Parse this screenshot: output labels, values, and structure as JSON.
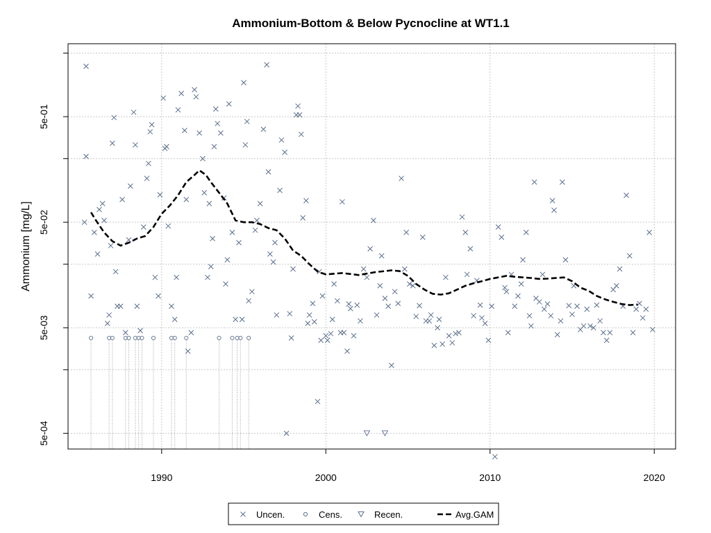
{
  "chart_data": {
    "type": "scatter",
    "title": "Ammonium-Bottom & Below Pycnocline at WT1.1",
    "xlabel": "",
    "ylabel": "Ammonium [mg/L]",
    "xlim": [
      1984.3,
      2021.3
    ],
    "ylim_log10": [
      -3.45,
      0.39
    ],
    "y_scale": "log",
    "grid": true,
    "x_ticks": [
      1990,
      2000,
      2010,
      2020
    ],
    "y_ticks": [
      {
        "value": 0.0005,
        "label": "5e-04"
      },
      {
        "value": 0.005,
        "label": "5e-03"
      },
      {
        "value": 0.05,
        "label": "5e-02"
      },
      {
        "value": 0.5,
        "label": "5e-01"
      }
    ],
    "y_grid": [
      0.0002,
      0.0005,
      0.002,
      0.005,
      0.02,
      0.05,
      0.2,
      0.5,
      2
    ],
    "legend": {
      "position": "bottom",
      "entries": [
        {
          "label": "Uncen.",
          "symbol": "x"
        },
        {
          "label": "Cens.",
          "symbol": "circle"
        },
        {
          "label": "Recen.",
          "symbol": "triangle-down"
        },
        {
          "label": "Avg.GAM",
          "symbol": "dashed-line"
        }
      ]
    },
    "colors": {
      "points": "#5a6e8c",
      "gam": "#000000",
      "grid": "#c8c8c8",
      "censored_line": "#a8a8a8"
    },
    "series": [
      {
        "name": "Uncen.",
        "points": [
          [
            1985.4,
            1.5
          ],
          [
            1985.4,
            0.21
          ],
          [
            1985.3,
            0.05
          ],
          [
            1985.7,
            0.01
          ],
          [
            1985.9,
            0.04
          ],
          [
            1986.1,
            0.025
          ],
          [
            1986.2,
            0.066
          ],
          [
            1986.4,
            0.075
          ],
          [
            1986.5,
            0.052
          ],
          [
            1986.7,
            0.0055
          ],
          [
            1986.8,
            0.0066
          ],
          [
            1986.9,
            0.03
          ],
          [
            1987.0,
            0.28
          ],
          [
            1987.1,
            0.49
          ],
          [
            1987.2,
            0.017
          ],
          [
            1987.3,
            0.008
          ],
          [
            1987.5,
            0.008
          ],
          [
            1987.6,
            0.082
          ],
          [
            1987.8,
            0.0045
          ],
          [
            1988.0,
            0.034
          ],
          [
            1988.1,
            0.11
          ],
          [
            1988.3,
            0.55
          ],
          [
            1988.4,
            0.27
          ],
          [
            1988.5,
            0.008
          ],
          [
            1988.7,
            0.0047
          ],
          [
            1988.9,
            0.045
          ],
          [
            1989.1,
            0.13
          ],
          [
            1989.2,
            0.18
          ],
          [
            1989.3,
            0.36
          ],
          [
            1989.4,
            0.42
          ],
          [
            1989.6,
            0.015
          ],
          [
            1989.8,
            0.01
          ],
          [
            1989.9,
            0.091
          ],
          [
            1990.1,
            0.75
          ],
          [
            1990.2,
            0.25
          ],
          [
            1990.3,
            0.26
          ],
          [
            1990.4,
            0.046
          ],
          [
            1990.6,
            0.008
          ],
          [
            1990.8,
            0.006
          ],
          [
            1990.9,
            0.015
          ],
          [
            1991.0,
            0.58
          ],
          [
            1991.2,
            0.83
          ],
          [
            1991.4,
            0.37
          ],
          [
            1991.5,
            0.082
          ],
          [
            1991.6,
            0.003
          ],
          [
            1991.8,
            0.0045
          ],
          [
            1992.0,
            0.9
          ],
          [
            1992.1,
            0.77
          ],
          [
            1992.3,
            0.35
          ],
          [
            1992.5,
            0.2
          ],
          [
            1992.6,
            0.095
          ],
          [
            1992.8,
            0.015
          ],
          [
            1992.9,
            0.075
          ],
          [
            1993.0,
            0.019
          ],
          [
            1993.1,
            0.035
          ],
          [
            1993.2,
            0.26
          ],
          [
            1993.3,
            0.59
          ],
          [
            1993.4,
            0.43
          ],
          [
            1993.6,
            0.35
          ],
          [
            1993.8,
            0.085
          ],
          [
            1993.9,
            0.013
          ],
          [
            1994.0,
            0.022
          ],
          [
            1994.1,
            0.66
          ],
          [
            1994.3,
            0.04
          ],
          [
            1994.5,
            0.006
          ],
          [
            1994.7,
            0.032
          ],
          [
            1994.9,
            0.006
          ],
          [
            1995.0,
            1.05
          ],
          [
            1995.1,
            0.27
          ],
          [
            1995.2,
            0.45
          ],
          [
            1995.3,
            0.009
          ],
          [
            1995.5,
            0.011
          ],
          [
            1995.7,
            0.042
          ],
          [
            1995.8,
            0.052
          ],
          [
            1996.0,
            0.075
          ],
          [
            1996.2,
            0.38
          ],
          [
            1996.4,
            1.55
          ],
          [
            1996.5,
            0.15
          ],
          [
            1996.6,
            0.025
          ],
          [
            1996.8,
            0.021
          ],
          [
            1996.9,
            0.032
          ],
          [
            1997.0,
            0.0066
          ],
          [
            1997.2,
            0.1
          ],
          [
            1997.3,
            0.3
          ],
          [
            1997.5,
            0.23
          ],
          [
            1997.6,
            0.0005
          ],
          [
            1997.8,
            0.0068
          ],
          [
            1997.9,
            0.004
          ],
          [
            1998.0,
            0.018
          ],
          [
            1998.2,
            0.52
          ],
          [
            1998.3,
            0.63
          ],
          [
            1998.4,
            0.52
          ],
          [
            1998.5,
            0.34
          ],
          [
            1998.6,
            0.055
          ],
          [
            1998.8,
            0.08
          ],
          [
            1998.9,
            0.0055
          ],
          [
            1999.0,
            0.0066
          ],
          [
            1999.2,
            0.0085
          ],
          [
            1999.3,
            0.0057
          ],
          [
            1999.5,
            0.001
          ],
          [
            1999.6,
            0.017
          ],
          [
            1999.7,
            0.0038
          ],
          [
            1999.8,
            0.01
          ],
          [
            2000.0,
            0.0042
          ],
          [
            2000.1,
            0.0038
          ],
          [
            2000.3,
            0.0044
          ],
          [
            2000.4,
            0.006
          ],
          [
            2000.5,
            0.013
          ],
          [
            2000.7,
            0.009
          ],
          [
            2000.9,
            0.0045
          ],
          [
            2001.0,
            0.078
          ],
          [
            2001.1,
            0.0045
          ],
          [
            2001.3,
            0.003
          ],
          [
            2001.4,
            0.0084
          ],
          [
            2001.5,
            0.0076
          ],
          [
            2001.7,
            0.0042
          ],
          [
            2001.9,
            0.0082
          ],
          [
            2002.1,
            0.0058
          ],
          [
            2002.3,
            0.018
          ],
          [
            2002.5,
            0.015
          ],
          [
            2002.7,
            0.028
          ],
          [
            2002.9,
            0.052
          ],
          [
            2003.1,
            0.0066
          ],
          [
            2003.3,
            0.0125
          ],
          [
            2003.4,
            0.024
          ],
          [
            2003.6,
            0.0095
          ],
          [
            2003.8,
            0.008
          ],
          [
            2004.0,
            0.0022
          ],
          [
            2004.2,
            0.011
          ],
          [
            2004.4,
            0.0085
          ],
          [
            2004.6,
            0.13
          ],
          [
            2004.8,
            0.018
          ],
          [
            2004.9,
            0.04
          ],
          [
            2005.1,
            0.013
          ],
          [
            2005.3,
            0.0125
          ],
          [
            2005.5,
            0.0064
          ],
          [
            2005.7,
            0.0081
          ],
          [
            2005.9,
            0.036
          ],
          [
            2006.1,
            0.0058
          ],
          [
            2006.3,
            0.0058
          ],
          [
            2006.4,
            0.0066
          ],
          [
            2006.6,
            0.0034
          ],
          [
            2006.8,
            0.005
          ],
          [
            2006.9,
            0.006
          ],
          [
            2007.1,
            0.0035
          ],
          [
            2007.3,
            0.015
          ],
          [
            2007.5,
            0.0042
          ],
          [
            2007.7,
            0.0036
          ],
          [
            2007.9,
            0.0044
          ],
          [
            2008.1,
            0.0045
          ],
          [
            2008.3,
            0.056
          ],
          [
            2008.5,
            0.04
          ],
          [
            2008.6,
            0.016
          ],
          [
            2008.8,
            0.028
          ],
          [
            2009.0,
            0.0065
          ],
          [
            2009.2,
            0.014
          ],
          [
            2009.4,
            0.0082
          ],
          [
            2009.5,
            0.0062
          ],
          [
            2009.7,
            0.0055
          ],
          [
            2009.9,
            0.0038
          ],
          [
            2010.1,
            0.008
          ],
          [
            2010.3,
            0.0003
          ],
          [
            2010.5,
            0.045
          ],
          [
            2010.7,
            0.036
          ],
          [
            2010.9,
            0.012
          ],
          [
            2011.0,
            0.011
          ],
          [
            2011.1,
            0.0045
          ],
          [
            2011.3,
            0.016
          ],
          [
            2011.5,
            0.008
          ],
          [
            2011.7,
            0.01
          ],
          [
            2011.9,
            0.013
          ],
          [
            2012.0,
            0.022
          ],
          [
            2012.2,
            0.04
          ],
          [
            2012.4,
            0.0065
          ],
          [
            2012.5,
            0.0052
          ],
          [
            2012.7,
            0.12
          ],
          [
            2012.8,
            0.0095
          ],
          [
            2013.0,
            0.0088
          ],
          [
            2013.2,
            0.016
          ],
          [
            2013.3,
            0.0075
          ],
          [
            2013.5,
            0.0084
          ],
          [
            2013.7,
            0.0065
          ],
          [
            2013.8,
            0.08
          ],
          [
            2013.9,
            0.065
          ],
          [
            2014.1,
            0.0043
          ],
          [
            2014.3,
            0.0058
          ],
          [
            2014.4,
            0.12
          ],
          [
            2014.6,
            0.022
          ],
          [
            2014.8,
            0.0081
          ],
          [
            2015.0,
            0.0067
          ],
          [
            2015.1,
            0.0125
          ],
          [
            2015.3,
            0.008
          ],
          [
            2015.5,
            0.0048
          ],
          [
            2015.7,
            0.0052
          ],
          [
            2015.9,
            0.0075
          ],
          [
            2016.1,
            0.0052
          ],
          [
            2016.3,
            0.005
          ],
          [
            2016.5,
            0.0082
          ],
          [
            2016.7,
            0.0058
          ],
          [
            2016.9,
            0.0045
          ],
          [
            2017.1,
            0.0038
          ],
          [
            2017.3,
            0.0045
          ],
          [
            2017.5,
            0.0115
          ],
          [
            2017.7,
            0.0125
          ],
          [
            2017.9,
            0.018
          ],
          [
            2018.1,
            0.008
          ],
          [
            2018.3,
            0.09
          ],
          [
            2018.5,
            0.024
          ],
          [
            2018.7,
            0.0045
          ],
          [
            2018.9,
            0.0075
          ],
          [
            2019.1,
            0.0085
          ],
          [
            2019.3,
            0.0062
          ],
          [
            2019.5,
            0.0075
          ],
          [
            2019.7,
            0.04
          ],
          [
            2019.9,
            0.0048
          ]
        ]
      },
      {
        "name": "Cens.",
        "points": [
          [
            1985.7,
            0.004
          ],
          [
            1986.8,
            0.004
          ],
          [
            1987.0,
            0.004
          ],
          [
            1987.8,
            0.004
          ],
          [
            1988.0,
            0.004
          ],
          [
            1988.4,
            0.004
          ],
          [
            1988.6,
            0.004
          ],
          [
            1988.8,
            0.004
          ],
          [
            1989.5,
            0.004
          ],
          [
            1990.6,
            0.004
          ],
          [
            1990.8,
            0.004
          ],
          [
            1991.5,
            0.004
          ],
          [
            1993.5,
            0.004
          ],
          [
            1994.3,
            0.004
          ],
          [
            1994.6,
            0.004
          ],
          [
            1994.8,
            0.004
          ],
          [
            1995.3,
            0.004
          ]
        ]
      },
      {
        "name": "Recen.",
        "points": [
          [
            2002.5,
            0.0005
          ],
          [
            2003.6,
            0.0005
          ]
        ]
      }
    ],
    "gam": {
      "name": "Avg.GAM",
      "points": [
        [
          1985.7,
          0.062
        ],
        [
          1986.0,
          0.052
        ],
        [
          1986.5,
          0.04
        ],
        [
          1987.0,
          0.033
        ],
        [
          1987.5,
          0.03
        ],
        [
          1988.0,
          0.032
        ],
        [
          1988.5,
          0.035
        ],
        [
          1989.0,
          0.037
        ],
        [
          1989.5,
          0.045
        ],
        [
          1990.0,
          0.06
        ],
        [
          1990.5,
          0.072
        ],
        [
          1991.0,
          0.09
        ],
        [
          1991.5,
          0.12
        ],
        [
          1992.0,
          0.14
        ],
        [
          1992.3,
          0.155
        ],
        [
          1992.7,
          0.14
        ],
        [
          1993.0,
          0.12
        ],
        [
          1993.5,
          0.095
        ],
        [
          1994.0,
          0.075
        ],
        [
          1994.5,
          0.052
        ],
        [
          1995.0,
          0.05
        ],
        [
          1995.5,
          0.05
        ],
        [
          1996.0,
          0.048
        ],
        [
          1996.5,
          0.044
        ],
        [
          1997.0,
          0.042
        ],
        [
          1997.5,
          0.035
        ],
        [
          1998.0,
          0.027
        ],
        [
          1998.5,
          0.024
        ],
        [
          1999.0,
          0.02
        ],
        [
          1999.5,
          0.017
        ],
        [
          2000.0,
          0.016
        ],
        [
          2001.0,
          0.0165
        ],
        [
          2002.0,
          0.0158
        ],
        [
          2003.0,
          0.0168
        ],
        [
          2004.0,
          0.0175
        ],
        [
          2004.5,
          0.0172
        ],
        [
          2005.0,
          0.0155
        ],
        [
          2005.5,
          0.013
        ],
        [
          2006.0,
          0.0115
        ],
        [
          2006.5,
          0.0105
        ],
        [
          2007.0,
          0.0103
        ],
        [
          2007.5,
          0.0106
        ],
        [
          2008.0,
          0.0115
        ],
        [
          2008.5,
          0.0125
        ],
        [
          2009.0,
          0.0132
        ],
        [
          2009.5,
          0.0138
        ],
        [
          2010.0,
          0.0145
        ],
        [
          2010.5,
          0.015
        ],
        [
          2011.0,
          0.0155
        ],
        [
          2011.5,
          0.0152
        ],
        [
          2012.0,
          0.015
        ],
        [
          2012.5,
          0.0148
        ],
        [
          2013.0,
          0.0145
        ],
        [
          2013.5,
          0.0146
        ],
        [
          2014.0,
          0.0148
        ],
        [
          2014.5,
          0.015
        ],
        [
          2015.0,
          0.0138
        ],
        [
          2015.5,
          0.012
        ],
        [
          2016.0,
          0.0112
        ],
        [
          2016.5,
          0.01
        ],
        [
          2017.0,
          0.0093
        ],
        [
          2017.5,
          0.0088
        ],
        [
          2018.0,
          0.0084
        ],
        [
          2018.5,
          0.0082
        ],
        [
          2019.0,
          0.0083
        ]
      ]
    }
  }
}
